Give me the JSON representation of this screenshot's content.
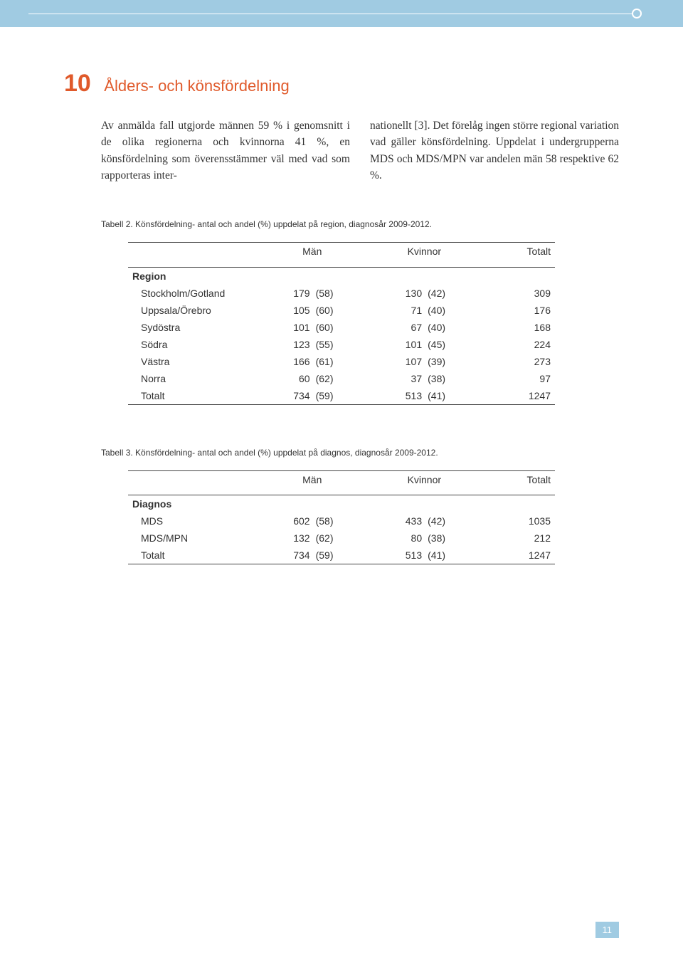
{
  "chapter": {
    "number": "10",
    "title": "Ålders- och könsfördelning"
  },
  "paragraph": {
    "col1": "Av anmälda fall utgjorde männen 59 % i genomsnitt i de olika regionerna och kvinnorna 41 %, en könsfördelning som överensstämmer väl med vad som rapporteras inter-",
    "col2": "nationellt [3]. Det förelåg ingen större regional variation vad gäller könsfördelning. Uppdelat i undergrupperna MDS och MDS/MPN var andelen män 58 respektive 62 %."
  },
  "table2": {
    "caption": "Tabell 2. Könsfördelning- antal och andel (%) uppdelat på region, diagnosår 2009-2012.",
    "headers": {
      "c1": "Män",
      "c2": "Kvinnor",
      "c3": "Totalt"
    },
    "section": "Region",
    "rows": [
      {
        "label": "Stockholm/Gotland",
        "m": "179",
        "mp": "(58)",
        "k": "130",
        "kp": "(42)",
        "t": "309"
      },
      {
        "label": "Uppsala/Örebro",
        "m": "105",
        "mp": "(60)",
        "k": "71",
        "kp": "(40)",
        "t": "176"
      },
      {
        "label": "Sydöstra",
        "m": "101",
        "mp": "(60)",
        "k": "67",
        "kp": "(40)",
        "t": "168"
      },
      {
        "label": "Södra",
        "m": "123",
        "mp": "(55)",
        "k": "101",
        "kp": "(45)",
        "t": "224"
      },
      {
        "label": "Västra",
        "m": "166",
        "mp": "(61)",
        "k": "107",
        "kp": "(39)",
        "t": "273"
      },
      {
        "label": "Norra",
        "m": "60",
        "mp": "(62)",
        "k": "37",
        "kp": "(38)",
        "t": "97"
      },
      {
        "label": "Totalt",
        "m": "734",
        "mp": "(59)",
        "k": "513",
        "kp": "(41)",
        "t": "1247"
      }
    ]
  },
  "table3": {
    "caption": "Tabell 3. Könsfördelning- antal och andel (%) uppdelat på diagnos, diagnosår 2009-2012.",
    "headers": {
      "c1": "Män",
      "c2": "Kvinnor",
      "c3": "Totalt"
    },
    "section": "Diagnos",
    "rows": [
      {
        "label": "MDS",
        "m": "602",
        "mp": "(58)",
        "k": "433",
        "kp": "(42)",
        "t": "1035"
      },
      {
        "label": "MDS/MPN",
        "m": "132",
        "mp": "(62)",
        "k": "80",
        "kp": "(38)",
        "t": "212"
      },
      {
        "label": "Totalt",
        "m": "734",
        "mp": "(59)",
        "k": "513",
        "kp": "(41)",
        "t": "1247"
      }
    ]
  },
  "pageNumber": "11"
}
